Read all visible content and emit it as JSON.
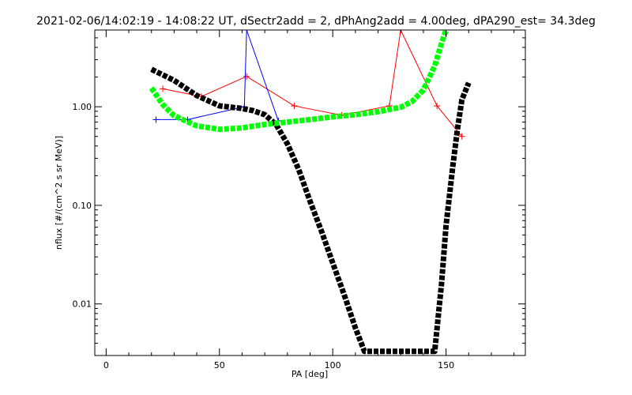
{
  "chart_data": {
    "type": "line",
    "title": "2021-02-06/14:02:19 - 14:08:22 UT, dSectr2add = 2, dPhAng2add = 4.00deg, dPA290_est=  34.3deg",
    "xlabel": "PA [deg]",
    "ylabel": "nflux [#/(cm^2 s sr MeV)]",
    "xlim": [
      -5,
      185
    ],
    "ylim": [
      0.003,
      6.0
    ],
    "yscale": "log",
    "x_ticks": [
      0,
      50,
      100,
      150
    ],
    "x_tick_labels": [
      "0",
      "50",
      "100",
      "150"
    ],
    "y_ticks": [
      0.01,
      0.1,
      1.0
    ],
    "y_tick_labels": [
      "0.01",
      "0.10",
      "1.00"
    ],
    "grid": false,
    "series": [
      {
        "color": "#ff0000",
        "style": "line-plus",
        "x": [
          25,
          42,
          62,
          83,
          104,
          125,
          130,
          146,
          157
        ],
        "y": [
          1.52,
          1.27,
          2.03,
          1.02,
          0.82,
          1.02,
          6.0,
          1.02,
          0.5
        ]
      },
      {
        "color": "#0000ff",
        "style": "line-plus",
        "x": [
          22,
          36,
          61,
          62,
          76
        ],
        "y": [
          0.74,
          0.74,
          1.0,
          6.0,
          0.72
        ]
      },
      {
        "color": "#000000",
        "style": "thick-dashed",
        "x": [
          20,
          30,
          40,
          50,
          60,
          65,
          70,
          75,
          80,
          85,
          90,
          95,
          100,
          105,
          110,
          114,
          145,
          148,
          150,
          153,
          155,
          157,
          160
        ],
        "y": [
          2.4,
          1.85,
          1.3,
          1.02,
          0.96,
          0.91,
          0.83,
          0.66,
          0.42,
          0.23,
          0.11,
          0.055,
          0.026,
          0.0125,
          0.0057,
          0.0033,
          0.0033,
          0.016,
          0.062,
          0.25,
          0.58,
          1.18,
          1.75
        ]
      },
      {
        "color": "#00ff00",
        "style": "thick-dashed",
        "x": [
          20,
          25,
          30,
          40,
          50,
          60,
          70,
          80,
          90,
          100,
          110,
          120,
          130,
          135,
          140,
          145,
          148,
          150
        ],
        "y": [
          1.55,
          1.05,
          0.81,
          0.64,
          0.59,
          0.61,
          0.66,
          0.7,
          0.74,
          0.79,
          0.83,
          0.89,
          0.99,
          1.13,
          1.48,
          2.6,
          4.4,
          6.0
        ]
      }
    ]
  }
}
